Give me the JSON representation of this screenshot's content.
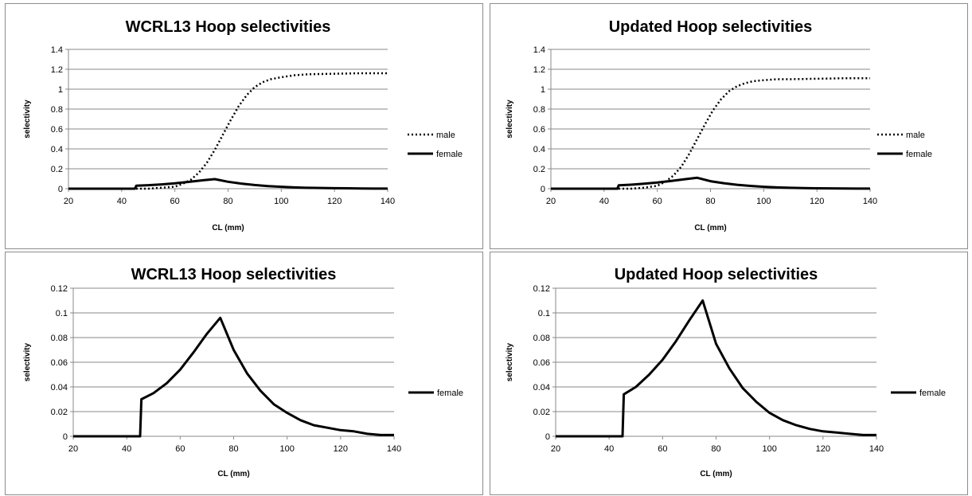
{
  "chart_data": [
    {
      "type": "line",
      "title": "WCRL13 Hoop selectivities",
      "xlabel": "CL (mm)",
      "ylabel": "selectivity",
      "xlim": [
        20,
        140
      ],
      "ylim": [
        0,
        1.4
      ],
      "xticks": [
        20,
        40,
        60,
        80,
        100,
        120,
        140
      ],
      "yticks": [
        "0",
        "0.2",
        "0.4",
        "0.6",
        "0.8",
        "1",
        "1.2",
        "1.4"
      ],
      "grid": true,
      "legend": "right",
      "series": [
        {
          "name": "male",
          "style": "dotted",
          "color": "#000000",
          "x": [
            20,
            50,
            55,
            60,
            63,
            66,
            69,
            72,
            75,
            78,
            81,
            84,
            87,
            90,
            93,
            96,
            100,
            105,
            110,
            120,
            130,
            140
          ],
          "y": [
            0,
            0,
            0.01,
            0.02,
            0.05,
            0.09,
            0.16,
            0.26,
            0.39,
            0.54,
            0.69,
            0.83,
            0.94,
            1.02,
            1.07,
            1.1,
            1.12,
            1.14,
            1.15,
            1.155,
            1.16,
            1.16
          ]
        },
        {
          "name": "female",
          "style": "solid",
          "color": "#000000",
          "x": [
            20,
            45,
            45.5,
            50,
            55,
            60,
            65,
            70,
            75,
            80,
            85,
            90,
            95,
            100,
            105,
            110,
            115,
            120,
            125,
            130,
            135,
            140
          ],
          "y": [
            0,
            0,
            0.03,
            0.035,
            0.043,
            0.054,
            0.068,
            0.083,
            0.096,
            0.07,
            0.051,
            0.037,
            0.026,
            0.019,
            0.013,
            0.009,
            0.007,
            0.005,
            0.004,
            0.002,
            0.001,
            0.001
          ]
        }
      ]
    },
    {
      "type": "line",
      "title": "Updated Hoop selectivities",
      "xlabel": "CL (mm)",
      "ylabel": "selectivity",
      "xlim": [
        20,
        140
      ],
      "ylim": [
        0,
        1.4
      ],
      "xticks": [
        20,
        40,
        60,
        80,
        100,
        120,
        140
      ],
      "yticks": [
        "0",
        "0.2",
        "0.4",
        "0.6",
        "0.8",
        "1",
        "1.2",
        "1.4"
      ],
      "grid": true,
      "legend": "right",
      "series": [
        {
          "name": "male",
          "style": "dotted",
          "color": "#000000",
          "x": [
            20,
            50,
            55,
            60,
            63,
            66,
            69,
            72,
            75,
            78,
            81,
            84,
            87,
            90,
            93,
            96,
            100,
            105,
            110,
            120,
            130,
            140
          ],
          "y": [
            0,
            0,
            0.01,
            0.03,
            0.07,
            0.13,
            0.22,
            0.35,
            0.5,
            0.65,
            0.79,
            0.9,
            0.98,
            1.03,
            1.06,
            1.08,
            1.09,
            1.1,
            1.1,
            1.105,
            1.11,
            1.11
          ]
        },
        {
          "name": "female",
          "style": "solid",
          "color": "#000000",
          "x": [
            20,
            45,
            45.5,
            50,
            55,
            60,
            65,
            70,
            75,
            80,
            85,
            90,
            95,
            100,
            105,
            110,
            115,
            120,
            125,
            130,
            135,
            140
          ],
          "y": [
            0,
            0,
            0.034,
            0.04,
            0.05,
            0.062,
            0.077,
            0.094,
            0.11,
            0.075,
            0.055,
            0.039,
            0.028,
            0.019,
            0.013,
            0.009,
            0.006,
            0.004,
            0.003,
            0.002,
            0.001,
            0.001
          ]
        }
      ]
    },
    {
      "type": "line",
      "title": "WCRL13 Hoop selectivities",
      "xlabel": "CL (mm)",
      "ylabel": "selectivity",
      "xlim": [
        20,
        140
      ],
      "ylim": [
        0,
        0.12
      ],
      "xticks": [
        20,
        40,
        60,
        80,
        100,
        120,
        140
      ],
      "yticks": [
        "0",
        "0.02",
        "0.04",
        "0.06",
        "0.08",
        "0.1",
        "0.12"
      ],
      "grid": true,
      "legend": "right",
      "series": [
        {
          "name": "female",
          "style": "solid",
          "color": "#000000",
          "x": [
            20,
            45,
            45.5,
            50,
            55,
            60,
            65,
            70,
            75,
            80,
            85,
            90,
            95,
            100,
            105,
            110,
            115,
            120,
            125,
            130,
            135,
            140
          ],
          "y": [
            0,
            0,
            0.03,
            0.035,
            0.043,
            0.054,
            0.068,
            0.083,
            0.096,
            0.07,
            0.051,
            0.037,
            0.026,
            0.019,
            0.013,
            0.009,
            0.007,
            0.005,
            0.004,
            0.002,
            0.001,
            0.001
          ]
        }
      ]
    },
    {
      "type": "line",
      "title": "Updated Hoop selectivities",
      "xlabel": "CL (mm)",
      "ylabel": "selectivity",
      "xlim": [
        20,
        140
      ],
      "ylim": [
        0,
        0.12
      ],
      "xticks": [
        20,
        40,
        60,
        80,
        100,
        120,
        140
      ],
      "yticks": [
        "0",
        "0.02",
        "0.04",
        "0.06",
        "0.08",
        "0.1",
        "0.12"
      ],
      "grid": true,
      "legend": "right",
      "series": [
        {
          "name": "female",
          "style": "solid",
          "color": "#000000",
          "x": [
            20,
            45,
            45.5,
            50,
            55,
            60,
            65,
            70,
            75,
            80,
            85,
            90,
            95,
            100,
            105,
            110,
            115,
            120,
            125,
            130,
            135,
            140
          ],
          "y": [
            0,
            0,
            0.034,
            0.04,
            0.05,
            0.062,
            0.077,
            0.094,
            0.11,
            0.075,
            0.055,
            0.039,
            0.028,
            0.019,
            0.013,
            0.009,
            0.006,
            0.004,
            0.003,
            0.002,
            0.001,
            0.001
          ]
        }
      ]
    }
  ]
}
